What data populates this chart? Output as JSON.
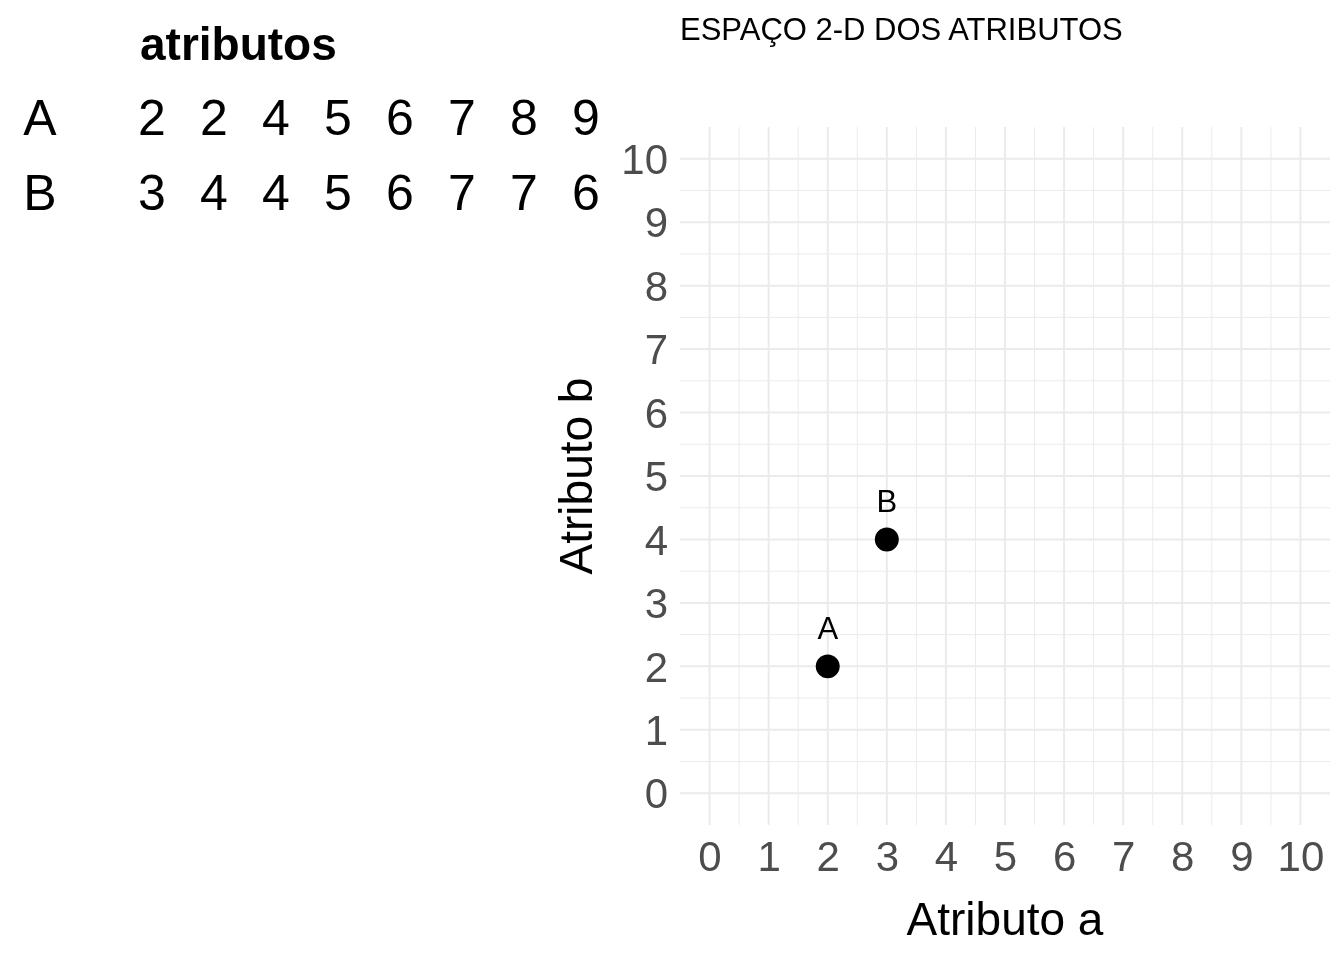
{
  "chart_data": [
    {
      "type": "other",
      "title": "atributos",
      "annotations": [
        "A 2 2 4 5 6 7 8 9",
        "B 3 4 4 5 6 7 7 6"
      ]
    },
    {
      "type": "scatter",
      "title": "ESPAÇO 2-D DOS ATRIBUTOS",
      "xlabel": "Atributo a",
      "ylabel": "Atributo b",
      "x": [
        2,
        3
      ],
      "series": [
        {
          "color": "#000000",
          "values": [
            2,
            4
          ]
        }
      ],
      "xlim": [
        -0.5,
        10.5
      ],
      "ylim": [
        -0.5,
        10.5
      ],
      "xticks": [
        0,
        1,
        2,
        3,
        4,
        5,
        6,
        7,
        8,
        9,
        10
      ],
      "yticks": [
        0,
        1,
        2,
        3,
        4,
        5,
        6,
        7,
        8,
        9,
        10
      ],
      "grid": true,
      "marker": "circle",
      "annotations": [
        {
          "text": "A",
          "x": 2,
          "y": 2
        },
        {
          "text": "B",
          "x": 3,
          "y": 4
        }
      ]
    }
  ]
}
